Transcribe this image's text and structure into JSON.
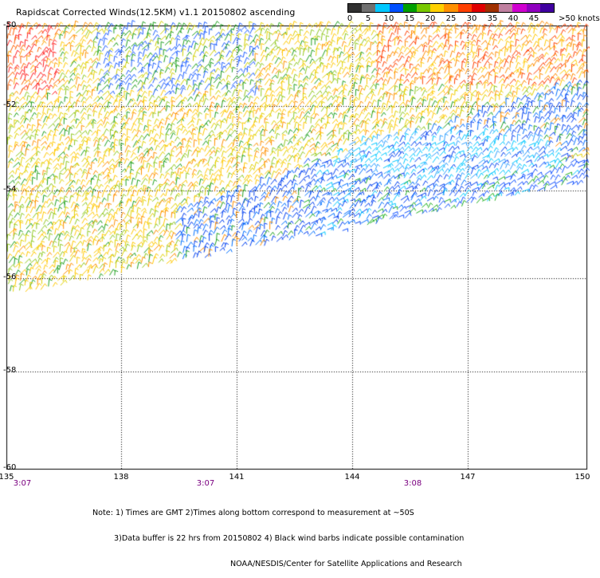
{
  "title": "Rapidscat Corrected Winds(12.5KM) v1.1 20150802 ascending",
  "color_scale": {
    "labels": [
      "0",
      "5",
      "10",
      "15",
      "20",
      "25",
      "30",
      "35",
      "40",
      "45",
      ">50 knots"
    ],
    "colors": [
      "#303030",
      "#707070",
      "#00c8ff",
      "#0050ff",
      "#00a000",
      "#78c800",
      "#ffd000",
      "#ff9000",
      "#ff4000",
      "#e00000",
      "#a03000",
      "#c080a0",
      "#d000d0",
      "#9000c0",
      "#4000a0"
    ]
  },
  "axes": {
    "latitudes": [
      "-50",
      "-52",
      "-54",
      "-56",
      "-58",
      "-60"
    ],
    "longitudes": [
      "135",
      "138",
      "141",
      "144",
      "147",
      "150"
    ],
    "times": [
      "3:07",
      "3:07",
      "3:08"
    ]
  },
  "notes": [
    "Note: 1) Times are GMT 2)Times along bottom correspond to measurement at ~50S",
    "3)Data buffer is 22 hrs from 20150802 4) Black wind barbs indicate possible contamination",
    "NOAA/NESDIS/Center for Satellite Applications and Research"
  ]
}
